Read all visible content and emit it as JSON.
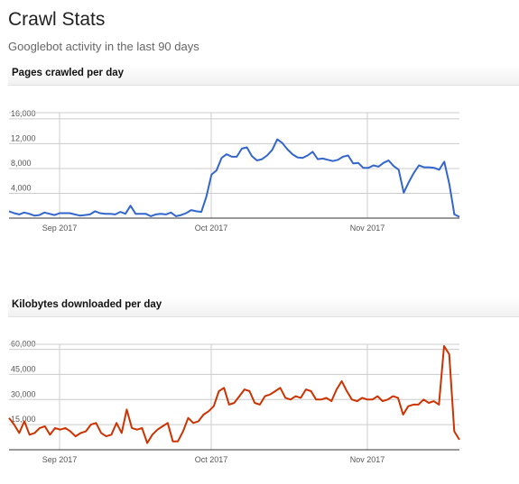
{
  "header": {
    "title": "Crawl Stats",
    "subtitle": "Googlebot activity in the last 90 days"
  },
  "colors": {
    "pages_line": "#3366cc",
    "kb_line": "#cc3300",
    "grid": "#cccccc",
    "axis_text": "#555555"
  },
  "chart_data": [
    {
      "type": "line",
      "title": "Pages crawled per day",
      "x_ticks": [
        "Sep 2017",
        "Oct 2017",
        "Nov 2017"
      ],
      "y_ticks": [
        "4,000",
        "8,000",
        "12,000",
        "16,000"
      ],
      "ylim": [
        0,
        17000
      ],
      "grid": true,
      "series": [
        {
          "values": [
            1100,
            800,
            600,
            900,
            700,
            400,
            500,
            900,
            700,
            500,
            800,
            800,
            800,
            600,
            400,
            500,
            600,
            1100,
            800,
            700,
            700,
            600,
            1000,
            700,
            2000,
            700,
            700,
            700,
            300,
            600,
            700,
            600,
            900,
            300,
            500,
            800,
            1300,
            1100,
            1000,
            3500,
            7000,
            7700,
            9700,
            10300,
            9900,
            9900,
            11200,
            11400,
            10000,
            9300,
            9500,
            10100,
            11000,
            12700,
            12100,
            11100,
            10300,
            9800,
            9700,
            10100,
            10700,
            9500,
            9600,
            9400,
            9200,
            9400,
            9900,
            10100,
            8800,
            8900,
            8100,
            8100,
            8500,
            8300,
            8900,
            9300,
            8400,
            7800,
            4100,
            5800,
            7300,
            8500,
            8200,
            8200,
            8100,
            7800,
            9100,
            5500,
            600,
            200
          ]
        }
      ]
    },
    {
      "type": "line",
      "title": "Kilobytes downloaded per day",
      "x_ticks": [
        "Sep 2017",
        "Oct 2017",
        "Nov 2017"
      ],
      "y_ticks": [
        "15,000",
        "30,000",
        "45,000",
        "60,000"
      ],
      "ylim": [
        0,
        63000
      ],
      "grid": true,
      "series": [
        {
          "values": [
            19000,
            15000,
            10000,
            17000,
            9000,
            10000,
            13000,
            14000,
            9000,
            13000,
            12000,
            13000,
            11000,
            8000,
            10000,
            11000,
            15000,
            16000,
            10000,
            8000,
            9000,
            16000,
            10000,
            24000,
            13000,
            12000,
            13000,
            4000,
            9000,
            12000,
            14000,
            16000,
            5000,
            5000,
            11000,
            19000,
            16000,
            17000,
            21000,
            23000,
            26000,
            35000,
            37000,
            27000,
            28000,
            32000,
            36000,
            35000,
            28000,
            27000,
            32000,
            33000,
            35000,
            37000,
            31000,
            30000,
            32000,
            31000,
            36000,
            35000,
            30000,
            30000,
            31000,
            29000,
            36000,
            41000,
            35000,
            30000,
            29000,
            31000,
            30000,
            30000,
            32000,
            29000,
            30000,
            32000,
            31000,
            21000,
            26000,
            27000,
            27000,
            30000,
            28000,
            29000,
            27000,
            62000,
            57000,
            11000,
            6000
          ]
        }
      ]
    }
  ]
}
